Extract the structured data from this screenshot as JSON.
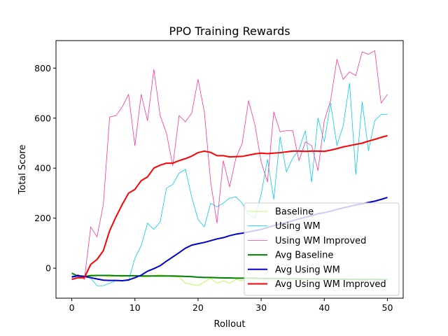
{
  "chart_data": {
    "type": "line",
    "title": "PPO Training Rewards",
    "xlabel": "Rollout",
    "ylabel": "Total Score",
    "xlim": [
      -2.5,
      52.5
    ],
    "ylim": [
      -120,
      910
    ],
    "xticks": [
      0,
      10,
      20,
      30,
      40,
      50
    ],
    "yticks": [
      0,
      200,
      400,
      600,
      800
    ],
    "grid": false,
    "legend_position": "bottom-right",
    "x": [
      0,
      1,
      2,
      3,
      4,
      5,
      6,
      7,
      8,
      9,
      10,
      11,
      12,
      13,
      14,
      15,
      16,
      17,
      18,
      19,
      20,
      21,
      22,
      23,
      24,
      25,
      26,
      27,
      28,
      29,
      30,
      31,
      32,
      33,
      34,
      35,
      36,
      37,
      38,
      39,
      40,
      41,
      42,
      43,
      44,
      45,
      46,
      47,
      48,
      49,
      50
    ],
    "series": [
      {
        "name": "Baseline",
        "color": "#adff2f",
        "width": 0.8,
        "values": [
          -20,
          -30,
          -35,
          -25,
          -30,
          -30,
          -35,
          -30,
          -35,
          -30,
          -30,
          -35,
          -35,
          -30,
          -25,
          -30,
          -35,
          -35,
          -60,
          -65,
          -70,
          -55,
          -40,
          -60,
          -50,
          -60,
          -45,
          -50,
          -40,
          -45,
          -50,
          -45,
          -50,
          -40,
          -45,
          -50,
          -45,
          -50,
          -45,
          -40,
          -50,
          -45,
          -50,
          -45,
          -50,
          -45,
          -50,
          -40,
          -45,
          -50,
          -55
        ]
      },
      {
        "name": "Using WM",
        "color": "#00ccee",
        "width": 0.8,
        "values": [
          -30,
          -40,
          -30,
          -40,
          -70,
          -70,
          -60,
          -50,
          -50,
          -50,
          40,
          90,
          180,
          155,
          185,
          320,
          335,
          380,
          395,
          285,
          195,
          165,
          260,
          245,
          260,
          280,
          285,
          260,
          215,
          200,
          295,
          435,
          275,
          525,
          385,
          440,
          475,
          550,
          345,
          600,
          505,
          660,
          490,
          570,
          740,
          375,
          665,
          470,
          590,
          615,
          615
        ]
      },
      {
        "name": "Using WM Improved",
        "color": "#ff3399",
        "width": 0.8,
        "values": [
          -40,
          -25,
          -45,
          165,
          125,
          255,
          605,
          610,
          645,
          695,
          490,
          695,
          590,
          795,
          610,
          540,
          410,
          610,
          585,
          620,
          755,
          625,
          345,
          180,
          430,
          325,
          440,
          500,
          670,
          575,
          425,
          345,
          625,
          545,
          550,
          550,
          430,
          505,
          490,
          390,
          590,
          670,
          835,
          755,
          785,
          770,
          865,
          855,
          870,
          660,
          695
        ]
      },
      {
        "name": "Avg Baseline",
        "color": "#008000",
        "width": 2,
        "values": [
          -20,
          -32,
          -33,
          -30,
          -29,
          -29,
          -29,
          -30,
          -30,
          -30,
          -30,
          -31,
          -31,
          -31,
          -31,
          -31,
          -31,
          -32,
          -33,
          -34,
          -36,
          -37,
          -37,
          -38,
          -39,
          -39,
          -40,
          -40,
          -40,
          -40,
          -41,
          -41,
          -41,
          -42,
          -42,
          -42,
          -43,
          -43,
          -43,
          -43,
          -44,
          -44,
          -44,
          -44,
          -44,
          -45,
          -45,
          -45,
          -45,
          -45,
          -46
        ]
      },
      {
        "name": "Avg Using WM",
        "color": "#0000cc",
        "width": 2,
        "values": [
          -35,
          -30,
          -33,
          -38,
          -43,
          -48,
          -49,
          -49,
          -50,
          -47,
          -38,
          -28,
          -12,
          -2,
          10,
          28,
          45,
          62,
          80,
          92,
          98,
          103,
          110,
          117,
          122,
          130,
          136,
          140,
          145,
          150,
          155,
          163,
          170,
          177,
          183,
          190,
          197,
          204,
          210,
          218,
          222,
          228,
          235,
          241,
          247,
          253,
          257,
          263,
          268,
          275,
          283
        ]
      },
      {
        "name": "Avg Using WM Improved",
        "color": "#ff0000",
        "width": 2,
        "values": [
          -45,
          -38,
          -38,
          15,
          35,
          70,
          150,
          205,
          255,
          300,
          315,
          350,
          365,
          400,
          412,
          420,
          420,
          430,
          438,
          448,
          462,
          468,
          463,
          450,
          450,
          445,
          446,
          447,
          452,
          457,
          460,
          458,
          460,
          462,
          465,
          468,
          468,
          467,
          468,
          468,
          467,
          472,
          478,
          485,
          490,
          495,
          500,
          508,
          515,
          523,
          530
        ]
      }
    ]
  }
}
